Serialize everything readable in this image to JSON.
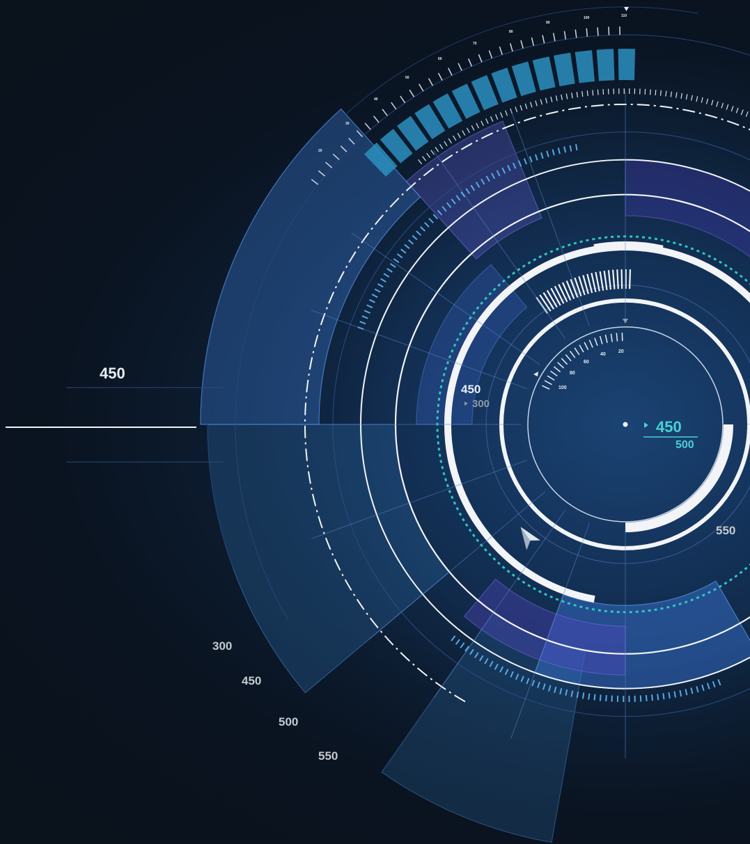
{
  "left_readout": {
    "value": "450"
  },
  "scale_labels": [
    "300",
    "450",
    "500",
    "550"
  ],
  "inner_readout": {
    "primary": "450",
    "secondary": "300"
  },
  "center_readout": {
    "primary": "450",
    "secondary": "500"
  },
  "right_readout": {
    "value": "550"
  },
  "outer_gauge_ticks": [
    "20",
    "30",
    "40",
    "50",
    "60",
    "70",
    "80",
    "90",
    "100",
    "110"
  ],
  "inner_gauge_ticks": [
    "20",
    "40",
    "60",
    "80",
    "100"
  ],
  "colors": {
    "background": "#0a121b",
    "accent_cyan": "#49d1d8",
    "accent_blue": "#3a8fd6",
    "accent_violet": "#4b3fa8",
    "ring_white": "#f2f4f7"
  },
  "icons": {
    "pointer": "paper-plane-pointer-icon"
  }
}
